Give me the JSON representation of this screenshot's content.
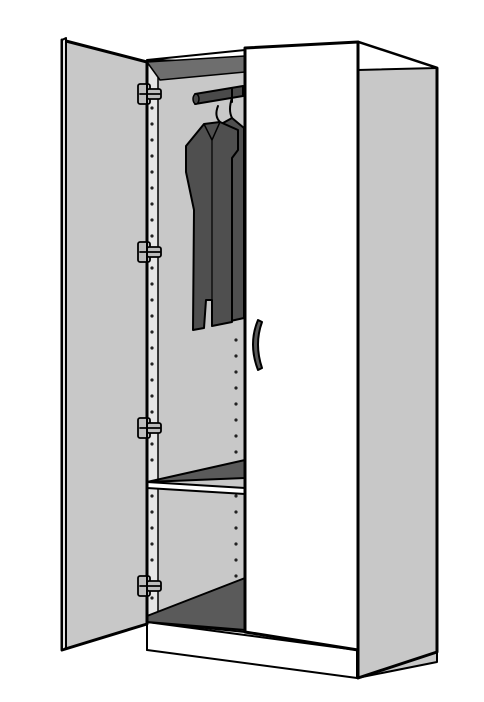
{
  "illustration": {
    "subject": "wardrobe",
    "icons": {
      "cabinet": "wardrobe-cabinet-icon",
      "hinge": "cabinet-hinge-icon",
      "hanger": "clothes-hanger-icon",
      "handle": "door-handle-icon"
    },
    "colors": {
      "outline": "#000000",
      "side_panel": "#c8c8c8",
      "interior_back": "#c8c8c8",
      "shelf_top": "#5a5a5a",
      "floor": "#5a5a5a",
      "garment": "#4f4f4f",
      "door_face": "#ffffff",
      "open_door": "#c8c8c8",
      "hinge_metal": "#bdbdbd"
    },
    "hinge_count": 4,
    "garment_count": 2,
    "shelf_count": 1
  }
}
